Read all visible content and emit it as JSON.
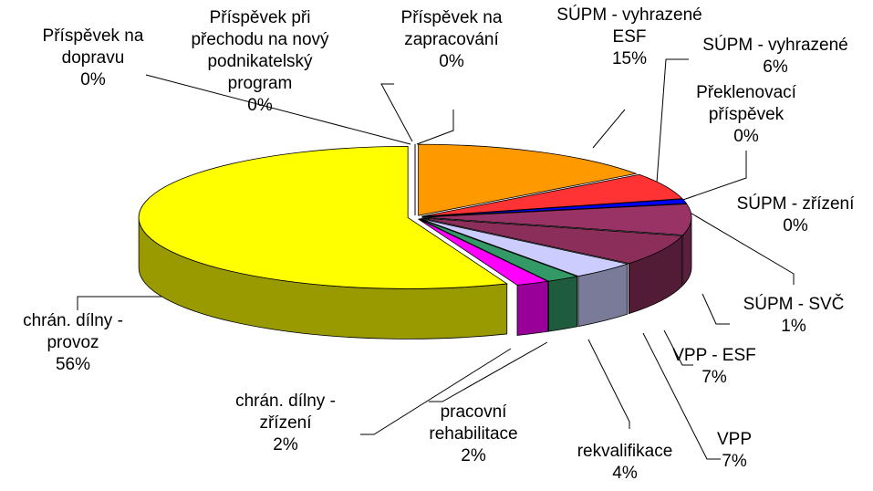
{
  "chart_data": {
    "type": "pie3d",
    "categories": [
      "Příspěvek na zapracování",
      "SÚPM - vyhrazené ESF",
      "SÚPM - vyhrazené",
      "Překlenovací příspěvek",
      "SÚPM - zřízení",
      "SÚPM - SVČ",
      "VPP - ESF",
      "VPP",
      "rekvalifikace",
      "pracovní rehabilitace",
      "chrán. dílny - zřízení",
      "chrán. dílny - provoz",
      "Příspěvek na dopravu",
      "Příspěvek při přechodu na nový podnikatelský program"
    ],
    "values": [
      0,
      15,
      6,
      0,
      0,
      1,
      7,
      7,
      4,
      2,
      2,
      56,
      0,
      0
    ],
    "value_labels": [
      "0%",
      "15%",
      "6%",
      "0%",
      "0%",
      "1%",
      "7%",
      "7%",
      "4%",
      "2%",
      "2%",
      "56%",
      "0%",
      "0%"
    ],
    "colors": [
      "#99ccff",
      "#ff9900",
      "#ff3333",
      "#ccffcc",
      "#ffffff",
      "#0000ff",
      "#993366",
      "#8b2f5a",
      "#ccccff",
      "#339966",
      "#ff00ff",
      "#ffff00",
      "#ff8080",
      "#c0c0c0"
    ]
  }
}
